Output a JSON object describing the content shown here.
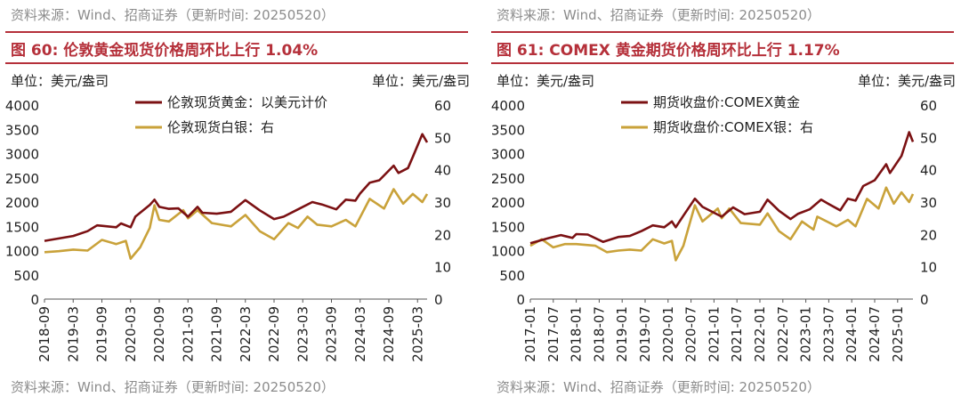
{
  "panels": [
    {
      "source_top": "资料来源：Wind、招商证券（更新时间: 20250520）",
      "source_bottom": "资料来源：Wind、招商证券（更新时间: 20250520）",
      "title": "图 60:  伦敦黄金现货价格周环比上行 1.04%"
    },
    {
      "source_top": "资料来源：Wind、招商证券（更新时间: 20250520）",
      "source_bottom": "资料来源：Wind、招商证券（更新时间: 20250520）",
      "title": "图 61:  COMEX 黄金期货价格周环比上行 1.17%"
    }
  ],
  "colors": {
    "gold": "#7b1113",
    "silver": "#c9a23a",
    "accent": "#b5303a"
  },
  "chart_data": [
    {
      "type": "line",
      "x_start": "2018-09",
      "x_end": "2025-05",
      "x_ticks": [
        "2018-09",
        "2019-03",
        "2019-09",
        "2020-03",
        "2020-09",
        "2021-03",
        "2021-09",
        "2022-03",
        "2022-09",
        "2023-03",
        "2023-09",
        "2024-03",
        "2024-09",
        "2025-03"
      ],
      "ylabel_left": "单位：美元/盎司",
      "ylabel_right": "单位：美元/盎司",
      "ylim_left": [
        0,
        4000
      ],
      "yticks_left": [
        "0",
        "500",
        "1000",
        "1500",
        "2000",
        "2500",
        "3000",
        "3500",
        "4000"
      ],
      "ylim_right": [
        0,
        60
      ],
      "yticks_right": [
        "0",
        "10",
        "20",
        "30",
        "40",
        "50",
        "60"
      ],
      "legend_position": "top-center",
      "series": [
        {
          "name": "伦敦现货黄金：以美元计价",
          "axis": "left",
          "points": [
            [
              "2018-09",
              1200
            ],
            [
              "2018-12",
              1250
            ],
            [
              "2019-03",
              1300
            ],
            [
              "2019-06",
              1400
            ],
            [
              "2019-08",
              1520
            ],
            [
              "2019-09",
              1510
            ],
            [
              "2019-12",
              1480
            ],
            [
              "2020-01",
              1560
            ],
            [
              "2020-03",
              1480
            ],
            [
              "2020-04",
              1700
            ],
            [
              "2020-07",
              1940
            ],
            [
              "2020-08",
              2050
            ],
            [
              "2020-09",
              1900
            ],
            [
              "2020-11",
              1860
            ],
            [
              "2021-01",
              1870
            ],
            [
              "2021-03",
              1700
            ],
            [
              "2021-05",
              1900
            ],
            [
              "2021-06",
              1780
            ],
            [
              "2021-09",
              1760
            ],
            [
              "2021-12",
              1800
            ],
            [
              "2022-03",
              2040
            ],
            [
              "2022-06",
              1830
            ],
            [
              "2022-09",
              1650
            ],
            [
              "2022-11",
              1700
            ],
            [
              "2023-02",
              1850
            ],
            [
              "2023-05",
              2000
            ],
            [
              "2023-07",
              1950
            ],
            [
              "2023-10",
              1850
            ],
            [
              "2023-12",
              2050
            ],
            [
              "2024-02",
              2030
            ],
            [
              "2024-03",
              2180
            ],
            [
              "2024-05",
              2400
            ],
            [
              "2024-07",
              2450
            ],
            [
              "2024-10",
              2750
            ],
            [
              "2024-11",
              2600
            ],
            [
              "2025-01",
              2700
            ],
            [
              "2025-02",
              2930
            ],
            [
              "2025-04",
              3400
            ],
            [
              "2025-05",
              3230
            ]
          ]
        },
        {
          "name": "伦敦现货白银：右",
          "axis": "right",
          "points": [
            [
              "2018-09",
              14.5
            ],
            [
              "2018-12",
              14.8
            ],
            [
              "2019-03",
              15.3
            ],
            [
              "2019-06",
              15
            ],
            [
              "2019-09",
              18.3
            ],
            [
              "2019-12",
              17
            ],
            [
              "2020-02",
              18
            ],
            [
              "2020-03",
              12.5
            ],
            [
              "2020-05",
              16
            ],
            [
              "2020-07",
              22
            ],
            [
              "2020-08",
              29
            ],
            [
              "2020-09",
              24.5
            ],
            [
              "2020-11",
              24
            ],
            [
              "2021-02",
              27.5
            ],
            [
              "2021-03",
              25
            ],
            [
              "2021-05",
              27.5
            ],
            [
              "2021-08",
              23.5
            ],
            [
              "2021-12",
              22.5
            ],
            [
              "2022-03",
              26
            ],
            [
              "2022-06",
              21
            ],
            [
              "2022-09",
              18.5
            ],
            [
              "2022-12",
              23.5
            ],
            [
              "2023-02",
              22
            ],
            [
              "2023-04",
              25.5
            ],
            [
              "2023-06",
              23
            ],
            [
              "2023-09",
              22.5
            ],
            [
              "2023-12",
              24.5
            ],
            [
              "2024-02",
              22.5
            ],
            [
              "2024-05",
              31
            ],
            [
              "2024-08",
              28
            ],
            [
              "2024-10",
              34
            ],
            [
              "2024-12",
              29.5
            ],
            [
              "2025-02",
              32.5
            ],
            [
              "2025-04",
              30
            ],
            [
              "2025-05",
              32.5
            ]
          ]
        }
      ]
    },
    {
      "type": "line",
      "x_start": "2017-01",
      "x_end": "2025-05",
      "x_ticks": [
        "2017-01",
        "2017-07",
        "2018-01",
        "2018-07",
        "2019-01",
        "2019-07",
        "2020-01",
        "2020-07",
        "2021-01",
        "2021-07",
        "2022-01",
        "2022-07",
        "2023-01",
        "2023-07",
        "2024-01",
        "2024-07",
        "2025-01"
      ],
      "ylabel_left": "单位：美元/盎司",
      "ylabel_right": "单位：美元/盎司",
      "ylim_left": [
        0,
        4000
      ],
      "yticks_left": [
        "0",
        "500",
        "1000",
        "1500",
        "2000",
        "2500",
        "3000",
        "3500",
        "4000"
      ],
      "ylim_right": [
        0,
        60
      ],
      "yticks_right": [
        "0",
        "10",
        "20",
        "30",
        "40",
        "50",
        "60"
      ],
      "legend_position": "top-center",
      "series": [
        {
          "name": "期货收盘价:COMEX黄金",
          "axis": "left",
          "points": [
            [
              "2017-01",
              1150
            ],
            [
              "2017-06",
              1260
            ],
            [
              "2017-09",
              1320
            ],
            [
              "2017-12",
              1260
            ],
            [
              "2018-01",
              1340
            ],
            [
              "2018-04",
              1330
            ],
            [
              "2018-08",
              1180
            ],
            [
              "2018-12",
              1280
            ],
            [
              "2019-03",
              1300
            ],
            [
              "2019-06",
              1400
            ],
            [
              "2019-09",
              1520
            ],
            [
              "2019-12",
              1480
            ],
            [
              "2020-02",
              1600
            ],
            [
              "2020-03",
              1480
            ],
            [
              "2020-05",
              1720
            ],
            [
              "2020-08",
              2070
            ],
            [
              "2020-10",
              1900
            ],
            [
              "2021-03",
              1700
            ],
            [
              "2021-06",
              1890
            ],
            [
              "2021-09",
              1750
            ],
            [
              "2022-01",
              1800
            ],
            [
              "2022-03",
              2050
            ],
            [
              "2022-06",
              1820
            ],
            [
              "2022-09",
              1650
            ],
            [
              "2022-11",
              1760
            ],
            [
              "2023-02",
              1850
            ],
            [
              "2023-05",
              2050
            ],
            [
              "2023-07",
              1960
            ],
            [
              "2023-10",
              1830
            ],
            [
              "2023-12",
              2070
            ],
            [
              "2024-02",
              2030
            ],
            [
              "2024-04",
              2330
            ],
            [
              "2024-07",
              2450
            ],
            [
              "2024-10",
              2780
            ],
            [
              "2024-11",
              2600
            ],
            [
              "2025-02",
              2950
            ],
            [
              "2025-04",
              3440
            ],
            [
              "2025-05",
              3240
            ]
          ]
        },
        {
          "name": "期货收盘价:COMEX银：右",
          "axis": "right",
          "points": [
            [
              "2017-01",
              16.5
            ],
            [
              "2017-04",
              18.5
            ],
            [
              "2017-07",
              16
            ],
            [
              "2017-10",
              17
            ],
            [
              "2018-01",
              17
            ],
            [
              "2018-06",
              16.5
            ],
            [
              "2018-09",
              14.5
            ],
            [
              "2018-12",
              15
            ],
            [
              "2019-03",
              15.3
            ],
            [
              "2019-06",
              15
            ],
            [
              "2019-09",
              18.5
            ],
            [
              "2019-12",
              17.2
            ],
            [
              "2020-02",
              18
            ],
            [
              "2020-03",
              12
            ],
            [
              "2020-05",
              16.5
            ],
            [
              "2020-08",
              29
            ],
            [
              "2020-10",
              24
            ],
            [
              "2021-02",
              28
            ],
            [
              "2021-03",
              25
            ],
            [
              "2021-05",
              28
            ],
            [
              "2021-08",
              23.5
            ],
            [
              "2022-01",
              23
            ],
            [
              "2022-03",
              26.5
            ],
            [
              "2022-06",
              21
            ],
            [
              "2022-09",
              18.5
            ],
            [
              "2022-12",
              24
            ],
            [
              "2023-03",
              21.5
            ],
            [
              "2023-04",
              25.5
            ],
            [
              "2023-09",
              22.5
            ],
            [
              "2023-12",
              24.5
            ],
            [
              "2024-02",
              22.5
            ],
            [
              "2024-05",
              31
            ],
            [
              "2024-08",
              28
            ],
            [
              "2024-10",
              34.5
            ],
            [
              "2024-12",
              29.5
            ],
            [
              "2025-02",
              33
            ],
            [
              "2025-04",
              30
            ],
            [
              "2025-05",
              32.5
            ]
          ]
        }
      ]
    }
  ]
}
